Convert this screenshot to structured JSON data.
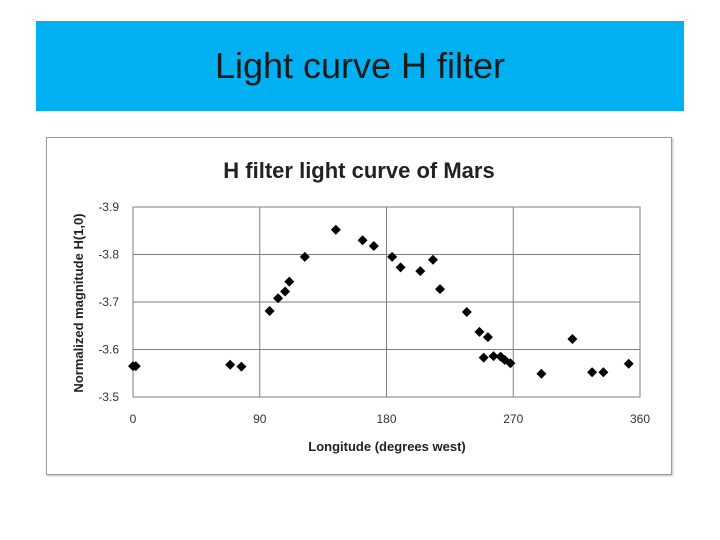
{
  "slide": {
    "title": "Light curve H filter",
    "banner_color": "#00b0f0"
  },
  "chart_data": {
    "type": "scatter",
    "title": "H filter light curve of Mars",
    "xlabel": "Longitude (degrees west)",
    "ylabel": "Normalized magnitude H(1,0)",
    "xlim": [
      0,
      360
    ],
    "ylim": [
      -3.5,
      -3.9
    ],
    "xticks": [
      0,
      90,
      180,
      270,
      360
    ],
    "yticks": [
      -3.9,
      -3.8,
      -3.7,
      -3.6,
      -3.5
    ],
    "xtick_labels": [
      "0",
      "90",
      "180",
      "270",
      "360"
    ],
    "ytick_labels": [
      "-3.9",
      "-3.8",
      "-3.7",
      "-3.6",
      "-3.5"
    ],
    "grid": true,
    "marker": "diamond",
    "marker_color": "#000000",
    "points": [
      {
        "x": 0,
        "y": -3.565
      },
      {
        "x": 2,
        "y": -3.565
      },
      {
        "x": 69,
        "y": -3.568
      },
      {
        "x": 77,
        "y": -3.564
      },
      {
        "x": 97,
        "y": -3.681
      },
      {
        "x": 103,
        "y": -3.708
      },
      {
        "x": 108,
        "y": -3.722
      },
      {
        "x": 111,
        "y": -3.743
      },
      {
        "x": 122,
        "y": -3.795
      },
      {
        "x": 144,
        "y": -3.852
      },
      {
        "x": 163,
        "y": -3.83
      },
      {
        "x": 171,
        "y": -3.818
      },
      {
        "x": 184,
        "y": -3.795
      },
      {
        "x": 190,
        "y": -3.773
      },
      {
        "x": 204,
        "y": -3.765
      },
      {
        "x": 213,
        "y": -3.789
      },
      {
        "x": 218,
        "y": -3.727
      },
      {
        "x": 237,
        "y": -3.679
      },
      {
        "x": 246,
        "y": -3.637
      },
      {
        "x": 249,
        "y": -3.583
      },
      {
        "x": 252,
        "y": -3.626
      },
      {
        "x": 256,
        "y": -3.586
      },
      {
        "x": 261,
        "y": -3.585
      },
      {
        "x": 264,
        "y": -3.578
      },
      {
        "x": 268,
        "y": -3.571
      },
      {
        "x": 290,
        "y": -3.549
      },
      {
        "x": 312,
        "y": -3.622
      },
      {
        "x": 326,
        "y": -3.552
      },
      {
        "x": 334,
        "y": -3.552
      },
      {
        "x": 352,
        "y": -3.57
      }
    ]
  }
}
